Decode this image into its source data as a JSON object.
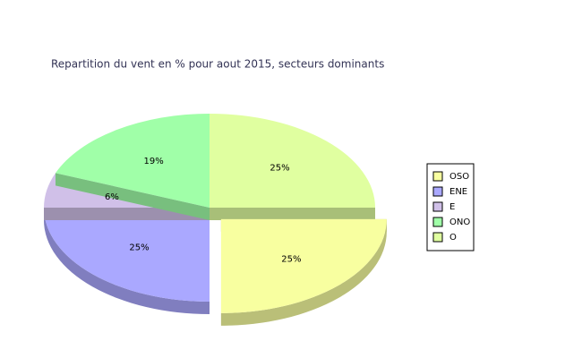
{
  "chart_data": {
    "type": "pie",
    "title": "Repartition du vent en % pour aout 2015, secteurs dominants",
    "categories": [
      "OSO",
      "ENE",
      "E",
      "ONO",
      "O"
    ],
    "values": [
      25,
      25,
      6,
      19,
      25
    ],
    "value_labels": [
      "25%",
      "25%",
      "6%",
      "19%",
      "25%"
    ],
    "colors": [
      "#f8ffa0",
      "#aaa8ff",
      "#d0c0e8",
      "#a0ffa8",
      "#e0ffa0"
    ],
    "legend": "right"
  }
}
